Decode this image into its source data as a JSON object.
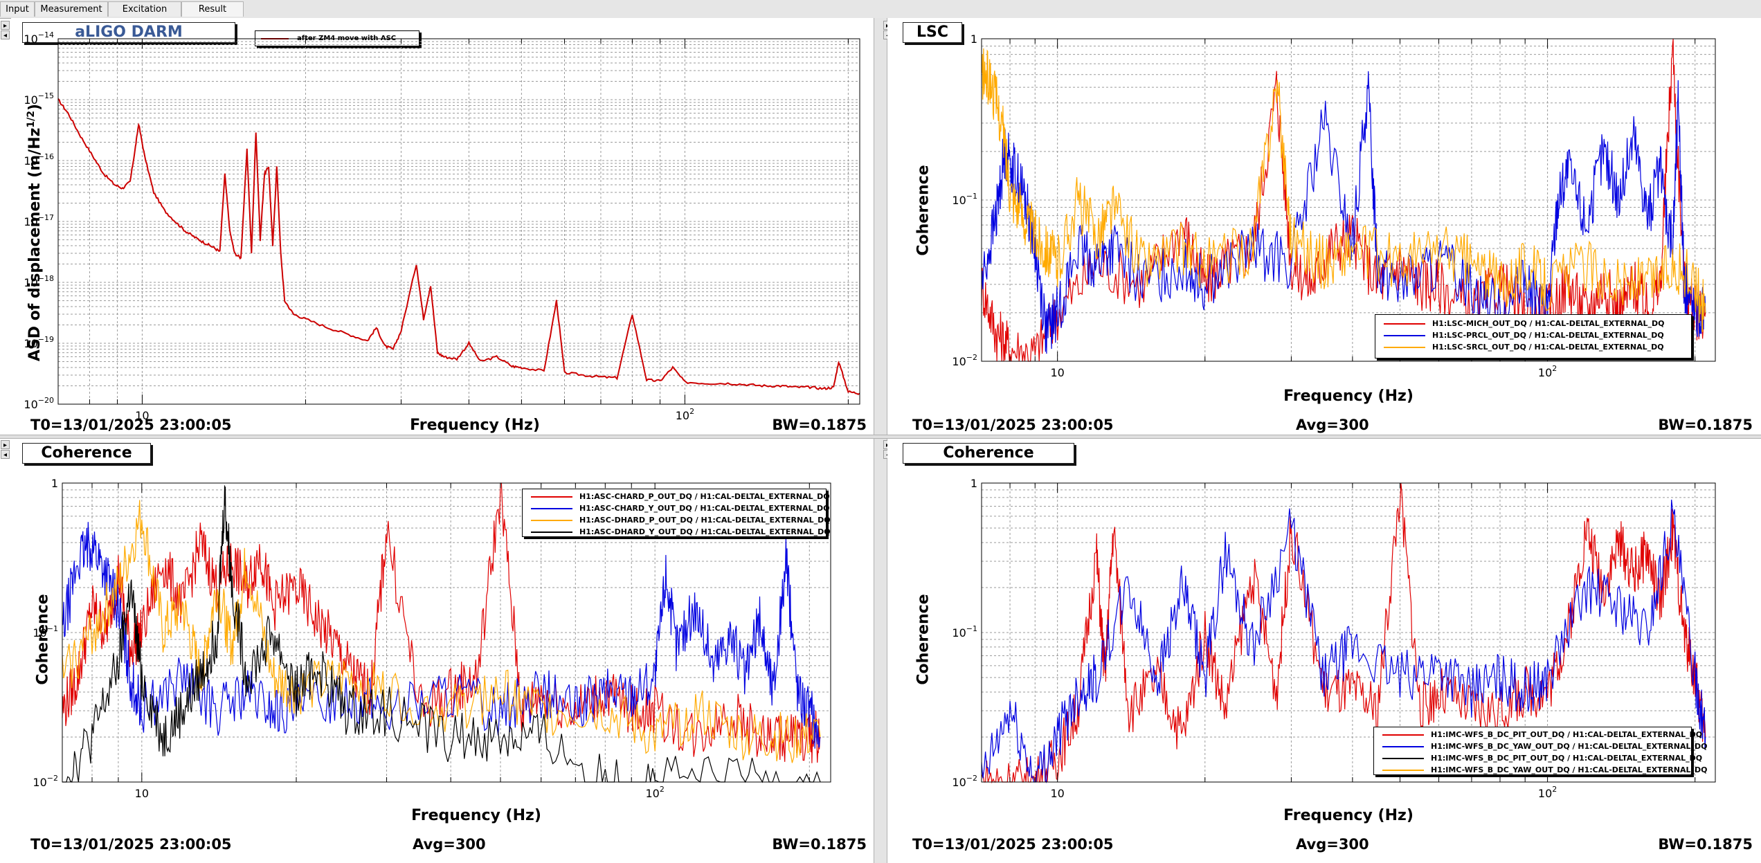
{
  "tabs": [
    {
      "label": "Input"
    },
    {
      "label": "Measurement"
    },
    {
      "label": "Excitation"
    },
    {
      "label": "Result"
    }
  ],
  "colors": {
    "red": "#e00000",
    "darkred": "#cc0000",
    "blue": "#0000e0",
    "orange": "#ffaa00",
    "black": "#000000",
    "grid": "#c8c8c8"
  },
  "panels": [
    {
      "title": "aLIGO DARM",
      "footer": {
        "t0": "T0=13/01/2025 23:00:05",
        "bw": "BW=0.1875"
      }
    },
    {
      "title": "LSC",
      "footer": {
        "t0": "T0=13/01/2025 23:00:05",
        "avg": "Avg=300",
        "bw": "BW=0.1875"
      }
    },
    {
      "title": "Coherence",
      "footer": {
        "t0": "T0=13/01/2025 23:00:05",
        "avg": "Avg=300",
        "bw": "BW=0.1875"
      }
    },
    {
      "title": "Coherence",
      "footer": {
        "t0": "T0=13/01/2025 23:00:05",
        "avg": "Avg=300",
        "bw": "BW=0.1875"
      }
    }
  ],
  "chart_data": [
    {
      "type": "line",
      "title": "aLIGO DARM",
      "xlabel": "Frequency (Hz)",
      "ylabel_main": "ASD of displacement (m/Hz",
      "ylabel_sup": "1/2",
      "ylabel_end": ")",
      "xscale": "log",
      "yscale": "log",
      "xlim": [
        7,
        210
      ],
      "ylim": [
        1e-20,
        1e-14
      ],
      "grid": true,
      "xticks": [
        {
          "value": 10,
          "label": "10"
        },
        {
          "value": 100,
          "label": "10",
          "sup": "2"
        }
      ],
      "yticks": [
        {
          "value": 1e-14,
          "label": "10",
          "sup": "−14"
        },
        {
          "value": 1e-15,
          "label": "10",
          "sup": "−15"
        },
        {
          "value": 1e-16,
          "label": "10",
          "sup": "−16"
        },
        {
          "value": 1e-17,
          "label": "10",
          "sup": "−17"
        },
        {
          "value": 1e-18,
          "label": "10",
          "sup": "−18"
        },
        {
          "value": 1e-19,
          "label": "10",
          "sup": "−19"
        },
        {
          "value": 1e-20,
          "label": "10",
          "sup": "−20"
        }
      ],
      "legend_position": "top-left",
      "series": [
        {
          "name": "after ZM4 move with ASC",
          "color": "#cc0000",
          "x": [
            7.0,
            7.3,
            7.7,
            8.1,
            8.5,
            8.9,
            9.2,
            9.5,
            9.7,
            9.85,
            10.1,
            10.5,
            11.0,
            11.5,
            12.0,
            12.5,
            13.0,
            13.5,
            13.9,
            14.2,
            14.5,
            14.8,
            15.2,
            15.6,
            15.9,
            16.2,
            16.5,
            16.8,
            17.1,
            17.4,
            17.7,
            18.0,
            18.3,
            19.0,
            20.0,
            22.0,
            24.0,
            26.0,
            27.0,
            28.0,
            29.0,
            30.0,
            32.0,
            33.0,
            34.0,
            35.0,
            36.0,
            38.0,
            40.0,
            42.0,
            45.0,
            48.0,
            50.0,
            55.0,
            58.0,
            60.0,
            65.0,
            70.0,
            75.0,
            80.0,
            85.0,
            90.0,
            95.0,
            100.0,
            110.0,
            120.0,
            130.0,
            140.0,
            150.0,
            160.0,
            170.0,
            180.0,
            188.0,
            192.0,
            200.0,
            210.0
          ],
          "y": [
            1e-15,
            6e-16,
            2.5e-16,
            1.2e-16,
            6e-17,
            4e-17,
            3.5e-17,
            4.5e-17,
            1.5e-16,
            4e-16,
            1.2e-16,
            3e-17,
            1.5e-17,
            1e-17,
            7e-18,
            5.5e-18,
            4.5e-18,
            3.8e-18,
            3.2e-18,
            6e-17,
            7e-18,
            3e-18,
            2.5e-18,
            1.5e-16,
            3e-18,
            3e-16,
            5e-18,
            6e-17,
            8e-17,
            4e-18,
            8e-17,
            3e-18,
            5e-19,
            3e-19,
            2.5e-19,
            1.8e-19,
            1.4e-19,
            1.1e-19,
            1.8e-19,
            9e-20,
            8e-20,
            1.6e-19,
            2e-18,
            2.5e-19,
            9e-19,
            7e-20,
            6e-20,
            5.5e-20,
            1e-19,
            5e-20,
            6e-20,
            4.2e-20,
            4e-20,
            3.5e-20,
            5e-19,
            3.3e-20,
            3e-20,
            2.8e-20,
            2.7e-20,
            3e-19,
            2.5e-20,
            2.4e-20,
            4e-20,
            2.3e-20,
            2.2e-20,
            2.2e-20,
            2.1e-20,
            2e-20,
            2e-20,
            1.9e-20,
            1.9e-20,
            1.8e-20,
            1.9e-20,
            5e-20,
            1.6e-20,
            1.5e-20
          ]
        }
      ]
    },
    {
      "type": "line",
      "title": "LSC",
      "xlabel": "Frequency (Hz)",
      "ylabel": "Coherence",
      "xscale": "log",
      "yscale": "log",
      "xlim": [
        7,
        220
      ],
      "ylim": [
        0.01,
        1
      ],
      "grid": true,
      "xticks": [
        {
          "value": 10,
          "label": "10"
        },
        {
          "value": 100,
          "label": "10",
          "sup": "2"
        }
      ],
      "yticks": [
        {
          "value": 1,
          "label": "1"
        },
        {
          "value": 0.1,
          "label": "10",
          "sup": "−1"
        },
        {
          "value": 0.01,
          "label": "10",
          "sup": "−2"
        }
      ],
      "legend_position": "bottom-right",
      "series": [
        {
          "name": "H1:LSC-MICH_OUT_DQ / H1:CAL-DELTAL_EXTERNAL_DQ",
          "color": "#e00000",
          "x": [
            7.0,
            7.5,
            8.0,
            9.0,
            10.0,
            12.0,
            15.0,
            18.0,
            20.0,
            22.0,
            25.0,
            28.0,
            30.0,
            33.0,
            36.0,
            40.0,
            45.0,
            50.0,
            55.0,
            60.0,
            70.0,
            80.0,
            90.0,
            100.0,
            110.0,
            120.0,
            130.0,
            140.0,
            150.0,
            160.0,
            170.0,
            180.0,
            190.0,
            200.0,
            210.0
          ],
          "y": [
            0.03,
            0.015,
            0.012,
            0.011,
            0.02,
            0.04,
            0.03,
            0.07,
            0.03,
            0.04,
            0.05,
            0.5,
            0.04,
            0.03,
            0.05,
            0.06,
            0.03,
            0.04,
            0.03,
            0.03,
            0.02,
            0.03,
            0.02,
            0.02,
            0.03,
            0.02,
            0.03,
            0.02,
            0.03,
            0.02,
            0.03,
            0.9,
            0.03,
            0.02,
            0.02
          ]
        },
        {
          "name": "H1:LSC-PRCL_OUT_DQ / H1:CAL-DELTAL_EXTERNAL_DQ",
          "color": "#0000e0",
          "x": [
            7.0,
            7.5,
            7.8,
            8.2,
            8.6,
            9.0,
            9.5,
            10.0,
            11.0,
            12.0,
            13.0,
            15.0,
            18.0,
            20.0,
            25.0,
            30.0,
            35.0,
            40.0,
            43.0,
            45.0,
            50.0,
            60.0,
            70.0,
            80.0,
            90.0,
            100.0,
            105.0,
            110.0,
            120.0,
            130.0,
            140.0,
            150.0,
            160.0,
            170.0,
            180.0,
            185.0,
            190.0,
            200.0,
            210.0
          ],
          "y": [
            0.03,
            0.08,
            0.2,
            0.15,
            0.1,
            0.05,
            0.015,
            0.02,
            0.05,
            0.04,
            0.05,
            0.03,
            0.04,
            0.03,
            0.05,
            0.04,
            0.3,
            0.05,
            0.5,
            0.04,
            0.03,
            0.04,
            0.03,
            0.02,
            0.03,
            0.02,
            0.1,
            0.15,
            0.07,
            0.2,
            0.1,
            0.25,
            0.08,
            0.15,
            0.05,
            0.45,
            0.03,
            0.02,
            0.02
          ]
        },
        {
          "name": "H1:LSC-SRCL_OUT_DQ / H1:CAL-DELTAL_EXTERNAL_DQ",
          "color": "#ffaa00",
          "x": [
            7.0,
            7.3,
            7.7,
            8.0,
            8.5,
            9.0,
            9.5,
            10.0,
            11.0,
            12.0,
            13.0,
            15.0,
            18.0,
            20.0,
            25.0,
            28.0,
            30.0,
            35.0,
            40.0,
            50.0,
            60.0,
            70.0,
            80.0,
            90.0,
            100.0,
            120.0,
            140.0,
            160.0,
            180.0,
            200.0,
            210.0
          ],
          "y": [
            0.6,
            0.55,
            0.3,
            0.12,
            0.08,
            0.06,
            0.05,
            0.04,
            0.1,
            0.06,
            0.09,
            0.04,
            0.05,
            0.04,
            0.05,
            0.55,
            0.06,
            0.04,
            0.05,
            0.04,
            0.05,
            0.04,
            0.03,
            0.04,
            0.03,
            0.04,
            0.03,
            0.03,
            0.04,
            0.03,
            0.02
          ]
        }
      ]
    },
    {
      "type": "line",
      "title": "Coherence",
      "xlabel": "Frequency (Hz)",
      "ylabel": "Coherence",
      "xscale": "log",
      "yscale": "log",
      "xlim": [
        7,
        220
      ],
      "ylim": [
        0.01,
        1
      ],
      "grid": true,
      "xticks": [
        {
          "value": 10,
          "label": "10"
        },
        {
          "value": 100,
          "label": "10",
          "sup": "2"
        }
      ],
      "yticks": [
        {
          "value": 1,
          "label": "1"
        },
        {
          "value": 0.1,
          "label": "10",
          "sup": "−1"
        },
        {
          "value": 0.01,
          "label": "10",
          "sup": "−2"
        }
      ],
      "legend_position": "top-right",
      "series": [
        {
          "name": "H1:ASC-CHARD_P_OUT_DQ / H1:CAL-DELTAL_EXTERNAL_DQ",
          "color": "#e00000",
          "x": [
            7.0,
            7.5,
            8.0,
            8.5,
            9.0,
            9.5,
            10.0,
            11.0,
            12.0,
            13.0,
            14.0,
            15.0,
            16.0,
            17.0,
            18.0,
            20.0,
            22.0,
            24.0,
            26.0,
            28.0,
            30.0,
            35.0,
            40.0,
            45.0,
            50.0,
            55.0,
            60.0,
            70.0,
            80.0,
            90.0,
            100.0,
            120.0,
            140.0,
            160.0,
            180.0,
            200.0,
            210.0
          ],
          "y": [
            0.03,
            0.05,
            0.15,
            0.1,
            0.25,
            0.08,
            0.1,
            0.3,
            0.15,
            0.4,
            0.2,
            0.3,
            0.2,
            0.35,
            0.15,
            0.2,
            0.12,
            0.08,
            0.05,
            0.04,
            0.5,
            0.03,
            0.04,
            0.05,
            0.9,
            0.03,
            0.04,
            0.03,
            0.04,
            0.03,
            0.03,
            0.02,
            0.03,
            0.02,
            0.02,
            0.02,
            0.02
          ]
        },
        {
          "name": "H1:ASC-CHARD_Y_OUT_DQ / H1:CAL-DELTAL_EXTERNAL_DQ",
          "color": "#0000e0",
          "x": [
            7.0,
            7.5,
            8.0,
            8.5,
            9.0,
            9.5,
            10.0,
            12.0,
            14.0,
            16.0,
            18.0,
            20.0,
            25.0,
            30.0,
            40.0,
            50.0,
            60.0,
            70.0,
            80.0,
            90.0,
            100.0,
            105.0,
            110.0,
            120.0,
            130.0,
            140.0,
            150.0,
            160.0,
            170.0,
            180.0,
            190.0,
            200.0,
            210.0
          ],
          "y": [
            0.1,
            0.3,
            0.4,
            0.25,
            0.15,
            0.05,
            0.03,
            0.05,
            0.03,
            0.04,
            0.03,
            0.03,
            0.04,
            0.03,
            0.04,
            0.03,
            0.04,
            0.03,
            0.04,
            0.04,
            0.05,
            0.25,
            0.08,
            0.15,
            0.06,
            0.1,
            0.05,
            0.12,
            0.04,
            0.3,
            0.04,
            0.03,
            0.02
          ]
        },
        {
          "name": "H1:ASC-DHARD_P_OUT_DQ / H1:CAL-DELTAL_EXTERNAL_DQ",
          "color": "#ffaa00",
          "x": [
            7.0,
            8.0,
            9.0,
            10.0,
            11.0,
            12.0,
            13.0,
            14.0,
            15.0,
            16.0,
            18.0,
            20.0,
            25.0,
            30.0,
            40.0,
            50.0,
            60.0,
            80.0,
            100.0,
            120.0,
            150.0,
            180.0,
            210.0
          ],
          "y": [
            0.05,
            0.1,
            0.2,
            0.6,
            0.1,
            0.15,
            0.05,
            0.2,
            0.08,
            0.3,
            0.05,
            0.04,
            0.05,
            0.04,
            0.03,
            0.04,
            0.03,
            0.03,
            0.02,
            0.03,
            0.02,
            0.02,
            0.02
          ]
        },
        {
          "name": "H1:ASC-DHARD_Y_OUT_DQ / H1:CAL-DELTAL_EXTERNAL_DQ",
          "color": "#000000",
          "x": [
            7.0,
            8.0,
            9.0,
            9.5,
            10.0,
            11.0,
            12.0,
            13.0,
            14.0,
            14.5,
            15.0,
            16.0,
            18.0,
            20.0,
            22.0,
            25.0,
            30.0,
            40.0,
            50.0,
            60.0,
            80.0,
            100.0,
            150.0,
            210.0
          ],
          "y": [
            0.01,
            0.02,
            0.06,
            0.2,
            0.05,
            0.02,
            0.03,
            0.05,
            0.1,
            0.8,
            0.2,
            0.05,
            0.1,
            0.04,
            0.06,
            0.03,
            0.03,
            0.02,
            0.02,
            0.02,
            0.01,
            0.01,
            0.01,
            0.01
          ]
        }
      ]
    },
    {
      "type": "line",
      "title": "Coherence",
      "xlabel": "Frequency (Hz)",
      "ylabel": "Coherence",
      "xscale": "log",
      "yscale": "log",
      "xlim": [
        7,
        220
      ],
      "ylim": [
        0.01,
        1
      ],
      "grid": true,
      "xticks": [
        {
          "value": 10,
          "label": "10"
        },
        {
          "value": 100,
          "label": "10",
          "sup": "2"
        }
      ],
      "yticks": [
        {
          "value": 1,
          "label": "1"
        },
        {
          "value": 0.1,
          "label": "10",
          "sup": "−1"
        },
        {
          "value": 0.01,
          "label": "10",
          "sup": "−2"
        }
      ],
      "legend_position": "bottom-right",
      "series": [
        {
          "name": "H1:IMC-WFS_B_DC_PIT_OUT_DQ / H1:CAL-DELTAL_EXTERNAL_DQ",
          "color": "#e00000",
          "x": [
            7.0,
            8.0,
            9.0,
            10.0,
            11.0,
            12.0,
            12.5,
            13.0,
            14.0,
            16.0,
            18.0,
            20.0,
            22.0,
            25.0,
            28.0,
            30.0,
            35.0,
            40.0,
            45.0,
            50.0,
            55.0,
            60.0,
            70.0,
            80.0,
            90.0,
            100.0,
            110.0,
            120.0,
            130.0,
            140.0,
            150.0,
            160.0,
            170.0,
            180.0,
            190.0,
            200.0,
            210.0
          ],
          "y": [
            0.01,
            0.01,
            0.01,
            0.015,
            0.03,
            0.35,
            0.05,
            0.5,
            0.03,
            0.05,
            0.02,
            0.1,
            0.03,
            0.25,
            0.04,
            0.5,
            0.04,
            0.04,
            0.03,
            0.9,
            0.03,
            0.04,
            0.03,
            0.03,
            0.04,
            0.04,
            0.1,
            0.5,
            0.2,
            0.4,
            0.25,
            0.35,
            0.15,
            0.5,
            0.1,
            0.05,
            0.02
          ]
        },
        {
          "name": "H1:IMC-WFS_B_DC_YAW_OUT_DQ / H1:CAL-DELTAL_EXTERNAL_DQ",
          "color": "#0000e0",
          "x": [
            7.0,
            8.0,
            9.0,
            10.0,
            11.0,
            12.0,
            14.0,
            16.0,
            18.0,
            20.0,
            22.0,
            25.0,
            30.0,
            35.0,
            40.0,
            50.0,
            60.0,
            70.0,
            80.0,
            90.0,
            100.0,
            120.0,
            140.0,
            160.0,
            180.0,
            200.0,
            210.0
          ],
          "y": [
            0.01,
            0.03,
            0.01,
            0.02,
            0.04,
            0.05,
            0.2,
            0.05,
            0.2,
            0.05,
            0.35,
            0.08,
            0.5,
            0.05,
            0.08,
            0.05,
            0.06,
            0.04,
            0.05,
            0.04,
            0.05,
            0.2,
            0.15,
            0.1,
            0.6,
            0.05,
            0.02
          ]
        },
        {
          "name": "H1:IMC-WFS_B_DC_PIT_OUT_DQ / H1:CAL-DELTAL_EXTERNAL_DQ",
          "color": "#000000",
          "x": [],
          "y": []
        },
        {
          "name": "H1:IMC-WFS_B_DC_YAW_OUT_DQ / H1:CAL-DELTAL_EXTERNAL_DQ",
          "color": "#ffaa00",
          "x": [],
          "y": []
        }
      ]
    }
  ]
}
